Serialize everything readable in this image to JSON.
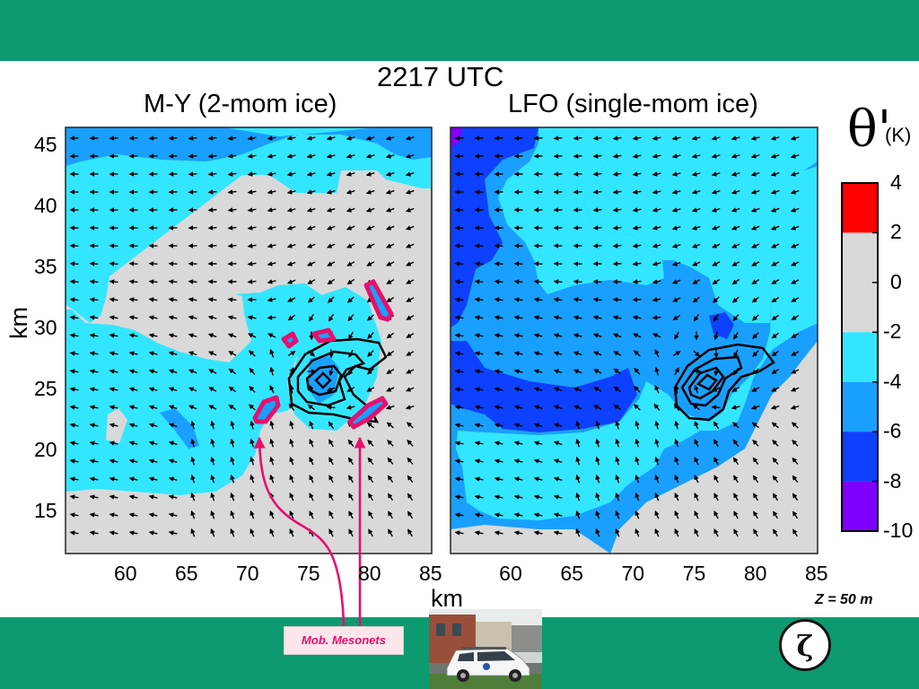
{
  "chart_data": [
    {
      "type": "filled-contour",
      "title": "M-Y (2-mom ice)",
      "xlabel": "km",
      "ylabel": "km",
      "x_ticks": [
        60,
        65,
        70,
        75,
        80,
        85
      ],
      "y_ticks": [
        15,
        20,
        25,
        30,
        35,
        40,
        45
      ],
      "xlim": [
        55,
        85
      ],
      "ylim": [
        11.5,
        46.5
      ],
      "fill_field": "theta_prime_K",
      "overlays": [
        "wind vectors",
        "vorticity contours"
      ],
      "mobile_mesonet_obs": [
        {
          "x": 71,
          "y": 23
        },
        {
          "x": 73.8,
          "y": 28.8
        },
        {
          "x": 75.8,
          "y": 29.3
        },
        {
          "x": 80.5,
          "y": 22.5
        },
        {
          "x": 81.2,
          "y": 32
        }
      ],
      "circulation_center": {
        "x": 76,
        "y": 25.3
      }
    },
    {
      "type": "filled-contour",
      "title": "LFO (single-mom ice)",
      "xlabel": "km",
      "ylabel": "km",
      "x_ticks": [
        60,
        65,
        70,
        75,
        80,
        85
      ],
      "xlim": [
        55,
        85
      ],
      "ylim": [
        11.5,
        46.5
      ],
      "fill_field": "theta_prime_K",
      "overlays": [
        "wind vectors",
        "vorticity contours"
      ],
      "circulation_center": {
        "x": 76,
        "y": 25.2
      }
    }
  ],
  "header": {
    "time": "2217 UTC"
  },
  "colorbar": {
    "symbol": "θ'",
    "unit": "(K)",
    "ticks": [
      "4",
      "2",
      "0",
      "-2",
      "-4",
      "-6",
      "-8",
      "-10"
    ],
    "bins": [
      {
        "range": [
          2,
          4
        ],
        "color": "#ff0000"
      },
      {
        "range": [
          -2,
          2
        ],
        "color": "#d9d9d9"
      },
      {
        "range": [
          -4,
          -2
        ],
        "color": "#33e6ff"
      },
      {
        "range": [
          -6,
          -4
        ],
        "color": "#19a0ff"
      },
      {
        "range": [
          -8,
          -6
        ],
        "color": "#0e40ff"
      },
      {
        "range": [
          -10,
          -8
        ],
        "color": "#7f00ff"
      }
    ]
  },
  "level_label": "Z = 50 m",
  "annotation": {
    "label": "Mob. Mesonets",
    "color": "#e7106b"
  },
  "badge": {
    "symbol": "ζ"
  },
  "colors": {
    "band": "#0e9a70",
    "contour": "#000000"
  }
}
